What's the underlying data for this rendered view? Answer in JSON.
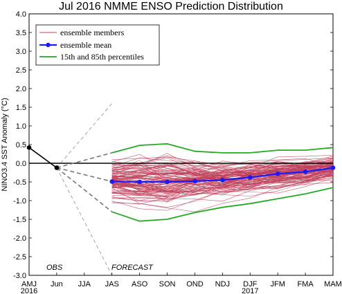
{
  "chart_data": {
    "type": "line",
    "title": "Jul 2016 NMME ENSO Prediction Distribution",
    "ylabel": "NINO3.4 SST Anomaly (°C)",
    "xlabel": "",
    "categories": [
      "AMJ",
      "Jun",
      "JJA",
      "JAS",
      "ASO",
      "SON",
      "OND",
      "NDJ",
      "DJF",
      "JFM",
      "FMA",
      "MAM"
    ],
    "years": [
      {
        "label": "2016",
        "category": "AMJ"
      },
      {
        "label": "2017",
        "category": "DJF"
      }
    ],
    "ylim": [
      -3.0,
      4.0
    ],
    "yticks": [
      "-3.0",
      "-2.5",
      "-2.0",
      "-1.5",
      "-1.0",
      "-0.5",
      "0.0",
      "0.5",
      "1.0",
      "1.5",
      "2.0",
      "2.5",
      "3.0",
      "3.5",
      "4.0"
    ],
    "annotations": [
      "OBS",
      "FORECAST"
    ],
    "legend": {
      "position": "top-left",
      "entries": [
        {
          "label": "ensemble members",
          "color": "#c0405a"
        },
        {
          "label": "ensemble mean",
          "color": "#1a1aff"
        },
        {
          "label": "15th and 85th percentiles",
          "color": "#22aa22"
        }
      ]
    },
    "observed": [
      {
        "category": "AMJ",
        "value": 0.42
      },
      {
        "category": "Jun",
        "value": -0.12
      }
    ],
    "ensemble_mean": [
      -0.49,
      -0.5,
      -0.5,
      -0.48,
      -0.45,
      -0.38,
      -0.28,
      -0.23,
      -0.12
    ],
    "percentile_85": [
      0.28,
      0.48,
      0.52,
      0.32,
      0.28,
      0.28,
      0.35,
      0.35,
      0.42
    ],
    "percentile_15": [
      -1.3,
      -1.55,
      -1.5,
      -1.32,
      -1.18,
      -1.08,
      -0.95,
      -0.82,
      -0.65
    ],
    "outer_range": {
      "upper": 1.6,
      "lower": -3.0,
      "category": "JAS"
    },
    "ensemble_members_note": "",
    "colors": {
      "members": "#c0405a",
      "mean": "#1a1aff",
      "percentiles": "#22aa22",
      "obs": "#000000",
      "range": "#999999"
    }
  }
}
